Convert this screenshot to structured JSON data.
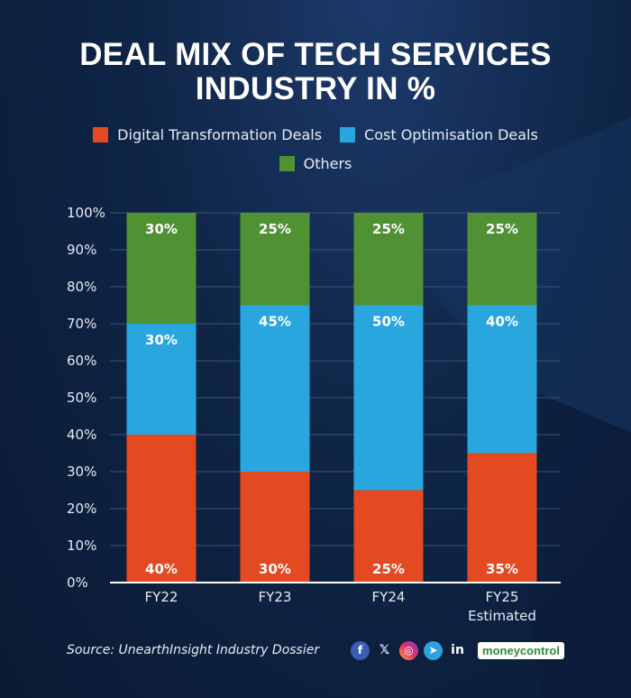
{
  "title_line1": "DEAL MIX OF TECH SERVICES",
  "title_line2": "INDUSTRY IN %",
  "colors": {
    "digital": "#e34a22",
    "cost": "#2aa6df",
    "others": "#4f9133",
    "axis": "#ffffff",
    "grid": "#3a5478"
  },
  "footer": {
    "source": "Source: UnearthInsight Industry Dossier",
    "brand": "moneycontrol",
    "icons": [
      "facebook-icon",
      "x-icon",
      "instagram-icon",
      "telegram-icon",
      "linkedin-icon"
    ]
  },
  "chart_data": {
    "type": "bar",
    "stacked": true,
    "categories": [
      "FY22",
      "FY23",
      "FY24",
      "FY25 Estimated"
    ],
    "category_lines": [
      [
        "FY22"
      ],
      [
        "FY23"
      ],
      [
        "FY24"
      ],
      [
        "FY25",
        "Estimated"
      ]
    ],
    "series": [
      {
        "name": "Digital Transformation Deals",
        "values": [
          40,
          30,
          25,
          35
        ],
        "labels": [
          "40%",
          "30%",
          "25%",
          "35%"
        ],
        "color": "#e34a22"
      },
      {
        "name": "Cost Optimisation Deals",
        "values": [
          30,
          45,
          50,
          40
        ],
        "labels": [
          "30%",
          "45%",
          "50%",
          "40%"
        ],
        "color": "#2aa6df"
      },
      {
        "name": "Others",
        "values": [
          30,
          25,
          25,
          25
        ],
        "labels": [
          "30%",
          "25%",
          "25%",
          "25%"
        ],
        "color": "#4f9133"
      }
    ],
    "ylim": [
      0,
      100
    ],
    "yticks": [
      0,
      10,
      20,
      30,
      40,
      50,
      60,
      70,
      80,
      90,
      100
    ],
    "ytick_labels": [
      "0%",
      "10%",
      "20%",
      "30%",
      "40%",
      "50%",
      "60%",
      "70%",
      "80%",
      "90%",
      "100%"
    ],
    "legend_position": "top",
    "grid": true
  }
}
